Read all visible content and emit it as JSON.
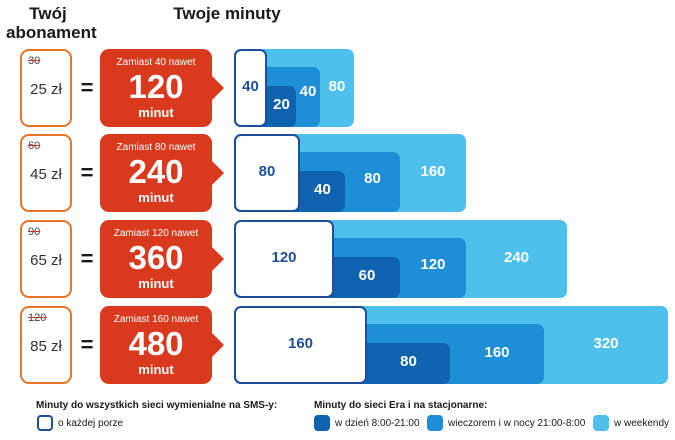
{
  "header": {
    "subscription_label": "Twój abonament",
    "minutes_label": "Twoje minuty"
  },
  "plans": [
    {
      "old_price": "30",
      "price": "25 zł",
      "equals": "=",
      "offer_caption": "Zamiast 40 nawet",
      "offer_minutes": "120",
      "offer_unit": "minut",
      "any_time": "40",
      "daytime": "20",
      "evening": "40",
      "weekend": "80"
    },
    {
      "old_price": "60",
      "price": "45 zł",
      "equals": "=",
      "offer_caption": "Zamiast 80 nawet",
      "offer_minutes": "240",
      "offer_unit": "minut",
      "any_time": "80",
      "daytime": "40",
      "evening": "80",
      "weekend": "160"
    },
    {
      "old_price": "90",
      "price": "65 zł",
      "equals": "=",
      "offer_caption": "Zamiast 120 nawet",
      "offer_minutes": "360",
      "offer_unit": "minut",
      "any_time": "120",
      "daytime": "60",
      "evening": "120",
      "weekend": "240"
    },
    {
      "old_price": "120",
      "price": "85 zł",
      "equals": "=",
      "offer_caption": "Zamiast 160 nawet",
      "offer_minutes": "480",
      "offer_unit": "minut",
      "any_time": "160",
      "daytime": "80",
      "evening": "160",
      "weekend": "320"
    }
  ],
  "legend": {
    "all_networks_title": "Minuty do wszystkich sieci wymienialne na SMS-y:",
    "any_time": "o każdej porze",
    "era_title": "Minuty do sieci Era i na stacjonarne:",
    "daytime": "w dzień 8:00-21:00",
    "evening": "wieczorem i w nocy 21:00-8:00",
    "weekend": "w weekendy"
  },
  "colors": {
    "offer": "#d93a1e",
    "price_border": "#e8742a",
    "any_time_border": "#1f4f9a",
    "daytime": "#0f62ad",
    "evening": "#1e8ed6",
    "weekend": "#4fc0ec"
  }
}
